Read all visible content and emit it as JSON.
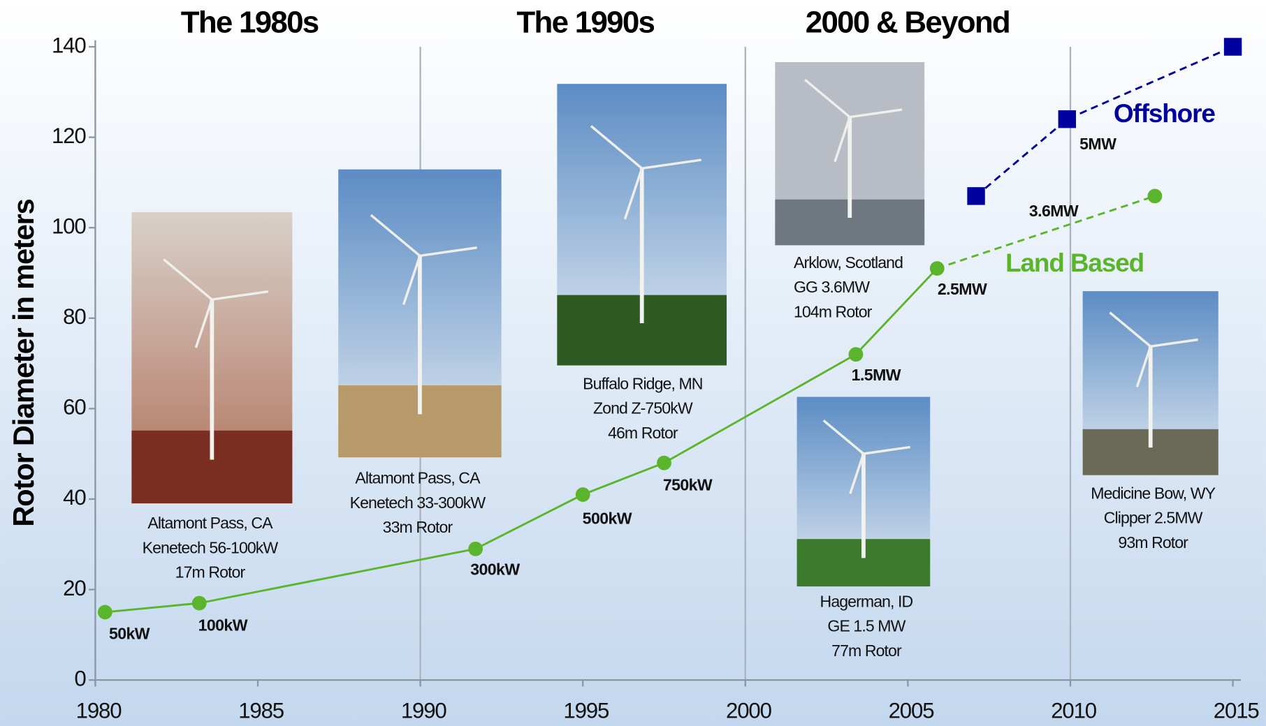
{
  "chart_data": {
    "type": "line",
    "ylabel": "Rotor Diameter in meters",
    "xlim": [
      1980,
      2015
    ],
    "xticks": [
      1980,
      1985,
      1990,
      1995,
      2000,
      2005,
      2010,
      2015
    ],
    "ylim": [
      0,
      140
    ],
    "yticks": [
      0,
      20,
      40,
      60,
      80,
      100,
      120,
      140
    ],
    "x_gridlines": [
      1990,
      2000,
      2010
    ],
    "eras": [
      "The 1980s",
      "The 1990s",
      "2000 & Beyond"
    ],
    "series": [
      {
        "name": "Land Based",
        "color": "#5ab52c",
        "dashed_from": 6,
        "x": [
          1980.3,
          1983.2,
          1991.7,
          1995.0,
          1997.5,
          2003.4,
          2005.9,
          2012.6
        ],
        "values": [
          15,
          17,
          29,
          41,
          48,
          72,
          91,
          107
        ],
        "value_labels": [
          "50kW",
          "100kW",
          "300kW",
          "500kW",
          "750kW",
          "1.5MW",
          "2.5MW",
          null
        ]
      },
      {
        "name": "Offshore",
        "color": "#00009c",
        "dashed_from": 0,
        "x": [
          2007.1,
          2009.9,
          2015.0
        ],
        "values": [
          107,
          124,
          140
        ],
        "value_labels": [
          "3.6MW",
          "5MW",
          null
        ]
      }
    ],
    "photos": [
      {
        "caption": [
          "Altamont Pass, CA",
          "Kenetech 56-100kW",
          "17m Rotor"
        ]
      },
      {
        "caption": [
          "Altamont Pass, CA",
          "Kenetech 33-300kW",
          "33m Rotor"
        ]
      },
      {
        "caption": [
          "Buffalo Ridge, MN",
          "Zond Z-750kW",
          "46m Rotor"
        ]
      },
      {
        "caption": [
          "Arklow, Scotland",
          "GG 3.6MW",
          "104m Rotor"
        ]
      },
      {
        "caption": [
          "Hagerman, ID",
          "GE 1.5 MW",
          "77m Rotor"
        ]
      },
      {
        "caption": [
          "Medicine Bow, WY",
          "Clipper 2.5MW",
          "93m Rotor"
        ]
      }
    ]
  }
}
